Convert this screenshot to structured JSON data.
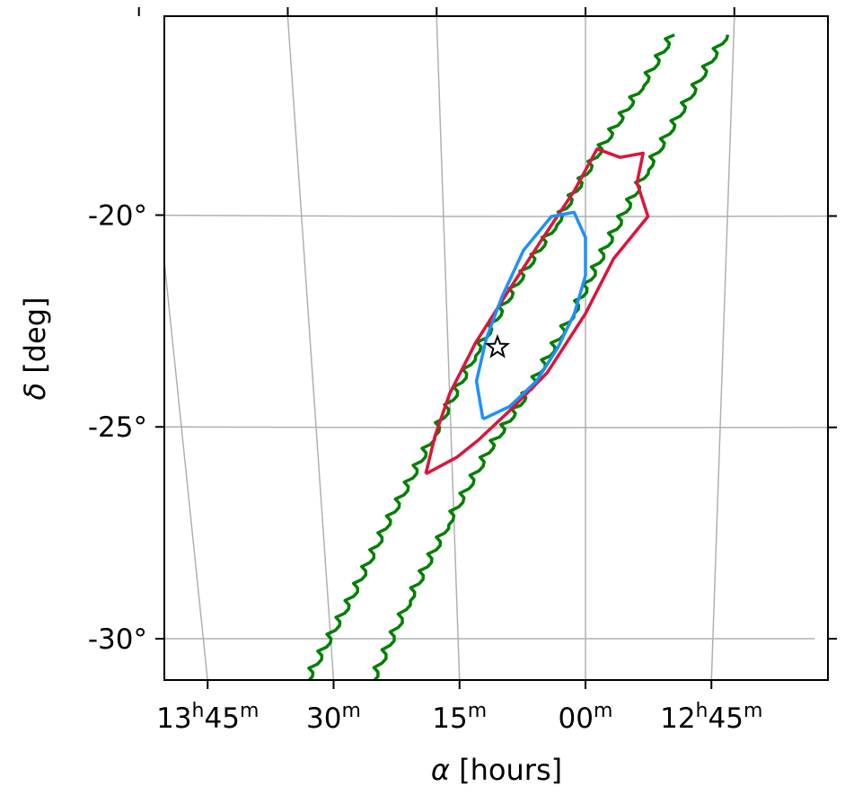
{
  "chart_data": {
    "type": "line",
    "projection": "sky map (right ascension vs declination)",
    "title": "",
    "xlabel": {
      "symbol": "α",
      "rest": " [hours]"
    },
    "ylabel": {
      "symbol": "δ",
      "rest": " [deg]"
    },
    "x_ticks": [
      {
        "ra_hours": 13.75,
        "major": "13",
        "major_sup": "h",
        "minor": "45",
        "minor_sup": "m"
      },
      {
        "ra_hours": 13.5,
        "major": "",
        "major_sup": "",
        "minor": "30",
        "minor_sup": "m"
      },
      {
        "ra_hours": 13.25,
        "major": "",
        "major_sup": "",
        "minor": "15",
        "minor_sup": "m"
      },
      {
        "ra_hours": 13.0,
        "major": "",
        "major_sup": "",
        "minor": "00",
        "minor_sup": "m"
      },
      {
        "ra_hours": 12.75,
        "major": "12",
        "major_sup": "h",
        "minor": "45",
        "minor_sup": "m"
      }
    ],
    "y_ticks": [
      {
        "dec_deg": -20,
        "label": "-20°"
      },
      {
        "dec_deg": -25,
        "label": "-25°"
      },
      {
        "dec_deg": -30,
        "label": "-30°"
      }
    ],
    "grid": true,
    "colors": {
      "band": "#008000",
      "outer_region": "#dc143c",
      "inner_region": "#1e90ff",
      "grid": "#b0b0b0"
    },
    "series": [
      {
        "color": "#008000",
        "style": "stepped",
        "points": [
          [
            13.55,
            -31.0
          ],
          [
            13.45,
            -29.0
          ],
          [
            13.38,
            -27.4
          ],
          [
            13.28,
            -25.2
          ],
          [
            13.2,
            -23.3
          ],
          [
            13.12,
            -21.6
          ],
          [
            13.05,
            -20.2
          ],
          [
            12.98,
            -18.6
          ],
          [
            12.9,
            -16.9
          ],
          [
            12.85,
            -15.7
          ]
        ]
      },
      {
        "color": "#008000",
        "style": "stepped",
        "points": [
          [
            13.42,
            -31.0
          ],
          [
            13.34,
            -29.1
          ],
          [
            13.26,
            -27.3
          ],
          [
            13.18,
            -25.6
          ],
          [
            13.1,
            -24.1
          ],
          [
            13.02,
            -22.3
          ],
          [
            12.96,
            -20.7
          ],
          [
            12.89,
            -18.9
          ],
          [
            12.82,
            -17.2
          ],
          [
            12.76,
            -15.7
          ]
        ]
      },
      {
        "color": "#dc143c",
        "style": "closed",
        "points": [
          [
            13.3,
            -26.1
          ],
          [
            13.28,
            -25.2
          ],
          [
            13.25,
            -24.2
          ],
          [
            13.2,
            -23.0
          ],
          [
            13.14,
            -21.8
          ],
          [
            13.08,
            -20.6
          ],
          [
            13.02,
            -19.4
          ],
          [
            12.98,
            -18.4
          ],
          [
            12.94,
            -18.6
          ],
          [
            12.9,
            -18.5
          ],
          [
            12.91,
            -19.2
          ],
          [
            12.89,
            -20.0
          ],
          [
            12.95,
            -21.0
          ],
          [
            13.0,
            -22.3
          ],
          [
            13.07,
            -23.7
          ],
          [
            13.14,
            -24.6
          ],
          [
            13.2,
            -25.3
          ],
          [
            13.24,
            -25.7
          ],
          [
            13.3,
            -26.1
          ]
        ]
      },
      {
        "color": "#1e90ff",
        "style": "closed",
        "points": [
          [
            13.19,
            -24.8
          ],
          [
            13.2,
            -23.9
          ],
          [
            13.18,
            -22.9
          ],
          [
            13.15,
            -21.9
          ],
          [
            13.11,
            -20.8
          ],
          [
            13.06,
            -20.0
          ],
          [
            13.02,
            -19.9
          ],
          [
            13.0,
            -20.5
          ],
          [
            13.0,
            -21.4
          ],
          [
            13.02,
            -22.3
          ],
          [
            13.05,
            -23.1
          ],
          [
            13.09,
            -23.9
          ],
          [
            13.14,
            -24.5
          ],
          [
            13.19,
            -24.8
          ]
        ]
      }
    ],
    "marker": {
      "shape": "star",
      "ra_hours": 13.16,
      "dec_deg": -23.1
    }
  }
}
